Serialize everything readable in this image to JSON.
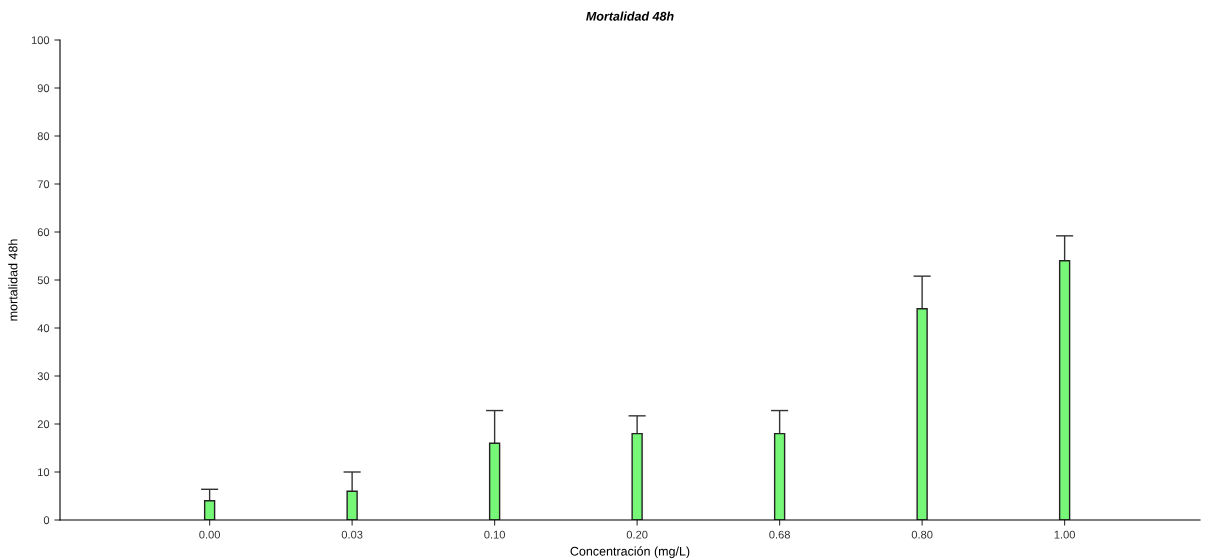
{
  "chart_data": {
    "type": "bar",
    "title": "Mortalidad 48h",
    "xlabel": "Concentración (mg/L)",
    "ylabel": "mortalidad 48h",
    "categories": [
      "0.00",
      "0.03",
      "0.10",
      "0.20",
      "0.68",
      "0.80",
      "1.00"
    ],
    "values": [
      4,
      6,
      16,
      18,
      18,
      44,
      54
    ],
    "errors": [
      [
        4,
        6.4
      ],
      [
        6,
        10
      ],
      [
        16,
        22.8
      ],
      [
        18,
        21.7
      ],
      [
        18,
        22.8
      ],
      [
        44,
        50.8
      ],
      [
        54,
        59.2
      ]
    ],
    "color": "#77f777",
    "ylim": [
      0,
      100
    ],
    "yticks": [
      0,
      10,
      20,
      30,
      40,
      50,
      60,
      70,
      80,
      90,
      100
    ],
    "grid": false
  }
}
